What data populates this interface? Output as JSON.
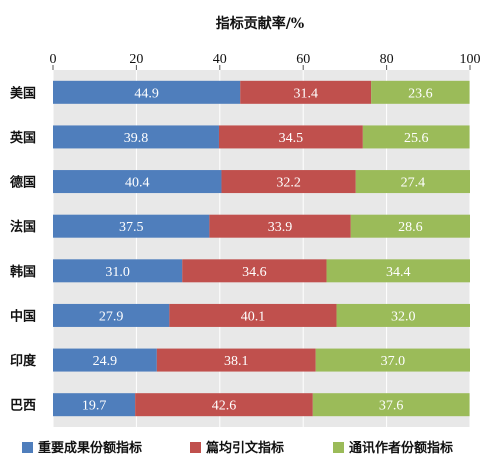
{
  "chart_data": {
    "type": "bar",
    "orientation": "horizontal",
    "stacked": true,
    "title": "指标贡献率/%",
    "xlim": [
      0,
      100
    ],
    "xticks": [
      0,
      20,
      40,
      60,
      80,
      100
    ],
    "grid": true,
    "legend_position": "bottom",
    "categories": [
      "美国",
      "英国",
      "德国",
      "法国",
      "韩国",
      "中国",
      "印度",
      "巴西"
    ],
    "series": [
      {
        "name": "重要成果份额指标",
        "color": "#4f7ebc",
        "values": [
          44.9,
          39.8,
          40.4,
          37.5,
          31.0,
          27.9,
          24.9,
          19.7
        ]
      },
      {
        "name": "篇均引文指标",
        "color": "#c0504d",
        "values": [
          31.4,
          34.5,
          32.2,
          33.9,
          34.6,
          40.1,
          38.1,
          42.6
        ]
      },
      {
        "name": "通讯作者份额指标",
        "color": "#9bbb59",
        "values": [
          23.6,
          25.6,
          27.4,
          28.6,
          34.4,
          32.0,
          37.0,
          37.6
        ]
      }
    ],
    "value_labels": [
      [
        "44.9",
        "39.8",
        "40.4",
        "37.5",
        "31.0",
        "27.9",
        "24.9",
        "19.7"
      ],
      [
        "31.4",
        "34.5",
        "32.2",
        "33.9",
        "34.6",
        "40.1",
        "38.1",
        "42.6"
      ],
      [
        "23.6",
        "25.6",
        "27.4",
        "28.6",
        "34.4",
        "32.0",
        "37.0",
        "37.6"
      ]
    ]
  }
}
